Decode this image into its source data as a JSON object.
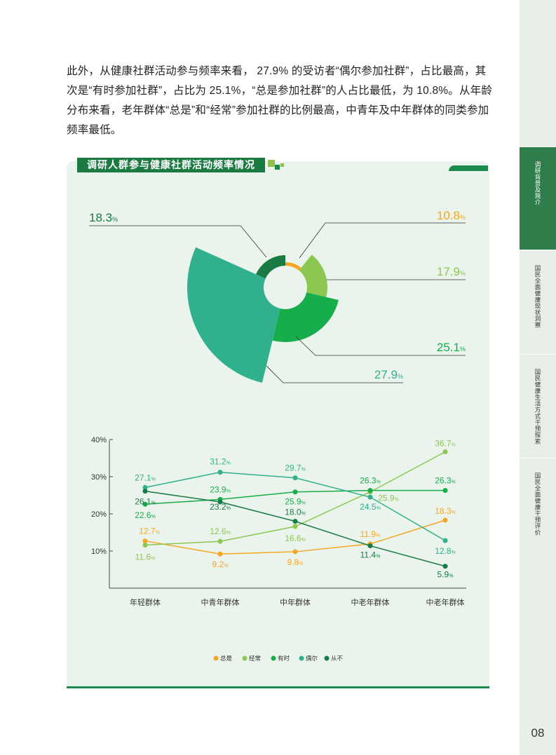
{
  "page": {
    "paragraph": "此外，从健康社群活动参与频率来看， 27.9% 的受访者“偶尔参加社群”，占比最高，其次是“有时参加社群”，占比为 25.1%，“总是参加社群”的人占比最低，为 10.8%。从年龄分布来看，老年群体“总是”和“经常”参加社群的比例最高，中青年及中年群体的同类参加频率最低。",
    "page_number": "08"
  },
  "sidebar": {
    "tabs": [
      {
        "label": "调研背景及简介",
        "active": true
      },
      {
        "label": "国民全面健康现状洞察",
        "active": false
      },
      {
        "label": "国民健康生活方式干预探索",
        "active": false
      },
      {
        "label": "国民全面健康干预评价",
        "active": false
      }
    ]
  },
  "colors": {
    "always": "#f5a623",
    "often": "#8cc751",
    "sometimes": "#17ad4a",
    "occasionally": "#30b08c",
    "never": "#1a7a45",
    "panel_bg": "#eaf4ec",
    "title_bg": "#1b7a42"
  },
  "chart_data": [
    {
      "type": "pie",
      "title": "调研人群参与健康社群活动频率情况",
      "slices": [
        {
          "key": "always",
          "value": 10.8,
          "label": "10.8",
          "unit": "%"
        },
        {
          "key": "often",
          "value": 17.9,
          "label": "17.9",
          "unit": "%"
        },
        {
          "key": "sometimes",
          "value": 25.1,
          "label": "25.1",
          "unit": "%"
        },
        {
          "key": "occasionally",
          "value": 27.9,
          "label": "27.9",
          "unit": "%"
        },
        {
          "key": "never",
          "value": 18.3,
          "label": "18.3",
          "unit": "%"
        }
      ]
    },
    {
      "type": "line",
      "categories": [
        "年轻群体",
        "中青年群体",
        "中年群体",
        "中老年群体",
        "中老年群体"
      ],
      "ylim": [
        0,
        40
      ],
      "yticks": [
        "40%",
        "30%",
        "20%",
        "10%"
      ],
      "ytick_values": [
        40,
        30,
        20,
        10
      ],
      "legend": {
        "placement": "bottom"
      },
      "series": [
        {
          "key": "always",
          "name": "总是",
          "values": [
            12.7,
            9.2,
            9.8,
            11.9,
            18.3
          ],
          "labels": [
            "12.7",
            "9.2",
            "9.8",
            "11.9",
            "18.3"
          ]
        },
        {
          "key": "often",
          "name": "经常",
          "values": [
            11.6,
            12.6,
            16.6,
            25.9,
            36.7
          ],
          "labels": [
            "11.6",
            "12.6",
            "16.6",
            "25.9",
            "36.7"
          ]
        },
        {
          "key": "sometimes",
          "name": "有时",
          "values": [
            22.6,
            23.9,
            25.9,
            26.3,
            26.3
          ],
          "labels": [
            "22.6",
            "23.9",
            "25.9",
            "26.3",
            "26.3"
          ]
        },
        {
          "key": "occasionally",
          "name": "偶尔",
          "values": [
            27.1,
            31.2,
            29.7,
            24.5,
            12.8
          ],
          "labels": [
            "27.1",
            "31.2",
            "29.7",
            "24.5",
            "12.8"
          ]
        },
        {
          "key": "never",
          "name": "从不",
          "values": [
            26.1,
            23.2,
            18.0,
            11.4,
            5.9
          ],
          "labels": [
            "26.1",
            "23.2",
            "18.0",
            "11.4",
            "5.9"
          ]
        }
      ],
      "unit": "%"
    }
  ]
}
